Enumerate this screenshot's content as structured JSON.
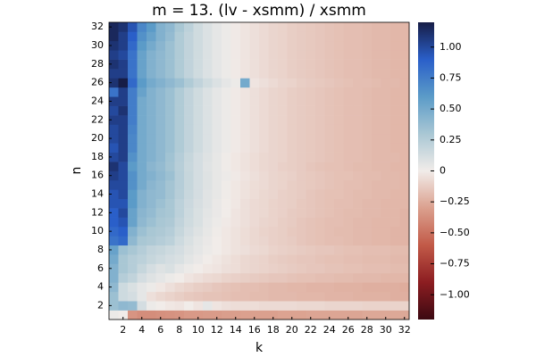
{
  "chart_data": {
    "type": "heatmap",
    "title": "m = 13. (lv - xsmm) / xsmm",
    "x_label": "k",
    "y_label": "n",
    "x": [
      1,
      2,
      3,
      4,
      5,
      6,
      7,
      8,
      9,
      10,
      11,
      12,
      13,
      14,
      15,
      16,
      17,
      18,
      19,
      20,
      21,
      22,
      23,
      24,
      25,
      26,
      27,
      28,
      29,
      30,
      31,
      32
    ],
    "y": [
      1,
      2,
      3,
      4,
      5,
      6,
      7,
      8,
      9,
      10,
      11,
      12,
      13,
      14,
      15,
      16,
      17,
      18,
      19,
      20,
      21,
      22,
      23,
      24,
      25,
      26,
      27,
      28,
      29,
      30,
      31,
      32
    ],
    "xlim": [
      0.5,
      32.5
    ],
    "ylim": [
      0.5,
      32.5
    ],
    "xticks": [
      2,
      4,
      6,
      8,
      10,
      12,
      14,
      16,
      18,
      20,
      22,
      24,
      26,
      28,
      30,
      32
    ],
    "yticks": [
      2,
      4,
      6,
      8,
      10,
      12,
      14,
      16,
      18,
      20,
      22,
      24,
      26,
      28,
      30,
      32
    ],
    "clim": [
      -1.2,
      1.2
    ],
    "colorbar_ticks": [
      {
        "value": -1,
        "label": "−1.00"
      },
      {
        "value": -0.75,
        "label": "−0.75"
      },
      {
        "value": -0.5,
        "label": "−0.50"
      },
      {
        "value": -0.25,
        "label": "−0.25"
      },
      0,
      {
        "value": 0.25,
        "label": "0.25"
      },
      {
        "value": 0.5,
        "label": "0.50"
      },
      {
        "value": 0.75,
        "label": "0.75"
      },
      {
        "value": 1,
        "label": "1.00"
      }
    ],
    "colormap": [
      "#3c0912",
      "#8c1d21",
      "#c25a48",
      "#dba08e",
      "#f1ece9",
      "#a9c7d4",
      "#5b9bc8",
      "#2a5fc9",
      "#171d46"
    ],
    "z": [
      [
        0.02,
        0.0,
        -0.35,
        -0.38,
        -0.38,
        -0.37,
        -0.36,
        -0.35,
        -0.33,
        -0.33,
        -0.32,
        -0.32,
        -0.31,
        -0.31,
        -0.3,
        -0.3,
        -0.3,
        -0.3,
        -0.29,
        -0.29,
        -0.29,
        -0.28,
        -0.28,
        -0.28,
        -0.28,
        -0.28,
        -0.28,
        -0.27,
        -0.27,
        -0.27,
        -0.27,
        -0.27
      ],
      [
        0.35,
        0.4,
        0.38,
        0.12,
        0.02,
        0.0,
        -0.02,
        -0.03,
        0.0,
        -0.03,
        0.05,
        -0.03,
        -0.05,
        -0.06,
        -0.06,
        -0.06,
        -0.07,
        -0.07,
        -0.07,
        -0.07,
        -0.08,
        -0.08,
        -0.08,
        -0.09,
        -0.09,
        -0.09,
        -0.09,
        -0.1,
        -0.1,
        -0.1,
        -0.1,
        -0.1
      ],
      [
        0.35,
        0.15,
        0.12,
        0.05,
        -0.05,
        -0.08,
        -0.1,
        -0.12,
        -0.14,
        -0.15,
        -0.16,
        -0.16,
        -0.17,
        -0.18,
        -0.18,
        -0.19,
        -0.19,
        -0.2,
        -0.2,
        -0.2,
        -0.21,
        -0.21,
        -0.21,
        -0.22,
        -0.22,
        -0.22,
        -0.23,
        -0.23,
        -0.23,
        -0.23,
        -0.24,
        -0.24
      ],
      [
        0.4,
        0.15,
        0.1,
        0.05,
        0.02,
        -0.02,
        -0.05,
        -0.08,
        -0.1,
        -0.12,
        -0.13,
        -0.15,
        -0.16,
        -0.17,
        -0.18,
        -0.18,
        -0.19,
        -0.2,
        -0.2,
        -0.21,
        -0.21,
        -0.22,
        -0.22,
        -0.22,
        -0.23,
        -0.23,
        -0.23,
        -0.24,
        -0.24,
        -0.24,
        -0.24,
        -0.25
      ],
      [
        0.45,
        0.25,
        0.2,
        0.12,
        0.08,
        0.05,
        0.02,
        0.0,
        -0.03,
        -0.05,
        -0.07,
        -0.08,
        -0.1,
        -0.11,
        -0.12,
        -0.13,
        -0.14,
        -0.15,
        -0.15,
        -0.16,
        -0.17,
        -0.17,
        -0.18,
        -0.18,
        -0.19,
        -0.19,
        -0.2,
        -0.2,
        -0.2,
        -0.21,
        -0.21,
        -0.21
      ],
      [
        0.45,
        0.3,
        0.25,
        0.18,
        0.12,
        0.08,
        0.1,
        0.05,
        0.02,
        0.0,
        -0.02,
        -0.03,
        -0.05,
        -0.06,
        -0.08,
        -0.09,
        -0.1,
        -0.11,
        -0.12,
        -0.13,
        -0.14,
        -0.15,
        -0.15,
        -0.16,
        -0.16,
        -0.17,
        -0.17,
        -0.18,
        -0.18,
        -0.18,
        -0.19,
        -0.19
      ],
      [
        0.5,
        0.3,
        0.25,
        0.22,
        0.18,
        0.15,
        0.12,
        0.1,
        0.06,
        0.03,
        0.0,
        -0.02,
        -0.04,
        -0.06,
        -0.08,
        -0.09,
        -0.1,
        -0.12,
        -0.13,
        -0.14,
        -0.15,
        -0.15,
        -0.16,
        -0.17,
        -0.17,
        -0.18,
        -0.18,
        -0.19,
        -0.19,
        -0.19,
        -0.2,
        -0.2
      ],
      [
        0.55,
        0.35,
        0.3,
        0.25,
        0.2,
        0.18,
        0.15,
        0.12,
        0.08,
        0.05,
        0.02,
        0.0,
        -0.02,
        -0.04,
        -0.05,
        -0.07,
        -0.08,
        -0.1,
        -0.11,
        -0.12,
        -0.13,
        -0.14,
        -0.15,
        -0.15,
        -0.16,
        -0.17,
        -0.17,
        -0.18,
        -0.18,
        -0.18,
        -0.19,
        -0.19
      ],
      [
        0.8,
        0.85,
        0.4,
        0.3,
        0.28,
        0.25,
        0.22,
        0.15,
        0.1,
        0.06,
        0.03,
        0.0,
        -0.02,
        -0.04,
        -0.06,
        -0.08,
        -0.09,
        -0.11,
        -0.12,
        -0.13,
        -0.15,
        -0.16,
        -0.17,
        -0.18,
        -0.18,
        -0.19,
        -0.2,
        -0.2,
        -0.21,
        -0.21,
        -0.22,
        -0.22
      ],
      [
        0.85,
        0.9,
        0.45,
        0.35,
        0.3,
        0.28,
        0.25,
        0.18,
        0.12,
        0.08,
        0.04,
        0.01,
        -0.02,
        -0.04,
        -0.06,
        -0.08,
        -0.1,
        -0.11,
        -0.12,
        -0.14,
        -0.15,
        -0.16,
        -0.17,
        -0.18,
        -0.19,
        -0.19,
        -0.2,
        -0.2,
        -0.21,
        -0.21,
        -0.22,
        -0.22
      ],
      [
        0.9,
        0.95,
        0.55,
        0.4,
        0.35,
        0.3,
        0.28,
        0.2,
        0.14,
        0.1,
        0.05,
        0.02,
        -0.01,
        -0.03,
        -0.05,
        -0.07,
        -0.09,
        -0.1,
        -0.12,
        -0.13,
        -0.15,
        -0.16,
        -0.17,
        -0.18,
        -0.18,
        -0.19,
        -0.2,
        -0.2,
        -0.21,
        -0.21,
        -0.21,
        -0.22
      ],
      [
        0.9,
        1.0,
        0.55,
        0.42,
        0.38,
        0.32,
        0.3,
        0.22,
        0.15,
        0.1,
        0.06,
        0.03,
        0.0,
        -0.03,
        -0.05,
        -0.07,
        -0.08,
        -0.1,
        -0.11,
        -0.13,
        -0.14,
        -0.15,
        -0.16,
        -0.17,
        -0.18,
        -0.19,
        -0.19,
        -0.2,
        -0.2,
        -0.21,
        -0.21,
        -0.22
      ],
      [
        0.95,
        0.95,
        0.6,
        0.45,
        0.4,
        0.35,
        0.3,
        0.22,
        0.16,
        0.11,
        0.07,
        0.03,
        0.0,
        -0.02,
        -0.05,
        -0.07,
        -0.08,
        -0.1,
        -0.11,
        -0.12,
        -0.14,
        -0.15,
        -0.16,
        -0.17,
        -0.18,
        -0.18,
        -0.19,
        -0.2,
        -0.2,
        -0.21,
        -0.21,
        -0.21
      ],
      [
        0.95,
        1.0,
        0.6,
        0.45,
        0.4,
        0.38,
        0.32,
        0.24,
        0.17,
        0.12,
        0.07,
        0.04,
        0.01,
        -0.02,
        -0.04,
        -0.06,
        -0.08,
        -0.09,
        -0.11,
        -0.12,
        -0.13,
        -0.15,
        -0.16,
        -0.17,
        -0.17,
        -0.18,
        -0.19,
        -0.19,
        -0.2,
        -0.2,
        -0.21,
        -0.21
      ],
      [
        1.0,
        1.0,
        0.65,
        0.5,
        0.42,
        0.38,
        0.32,
        0.25,
        0.18,
        0.12,
        0.08,
        0.04,
        0.01,
        -0.02,
        -0.04,
        -0.06,
        -0.07,
        -0.09,
        -0.1,
        -0.12,
        -0.13,
        -0.14,
        -0.15,
        -0.16,
        -0.17,
        -0.18,
        -0.18,
        -0.19,
        -0.2,
        -0.2,
        -0.2,
        -0.21
      ],
      [
        1.05,
        1.0,
        0.65,
        0.5,
        0.45,
        0.4,
        0.35,
        0.25,
        0.18,
        0.12,
        0.08,
        0.04,
        0.02,
        -0.01,
        -0.03,
        -0.05,
        -0.07,
        -0.09,
        -0.1,
        -0.11,
        -0.13,
        -0.14,
        -0.15,
        -0.16,
        -0.17,
        -0.17,
        -0.18,
        -0.19,
        -0.19,
        -0.2,
        -0.2,
        -0.21
      ],
      [
        1.1,
        1.0,
        0.6,
        0.5,
        0.42,
        0.38,
        0.32,
        0.24,
        0.17,
        0.12,
        0.07,
        0.04,
        0.01,
        -0.02,
        -0.04,
        -0.06,
        -0.08,
        -0.09,
        -0.11,
        -0.12,
        -0.13,
        -0.15,
        -0.16,
        -0.17,
        -0.17,
        -0.18,
        -0.19,
        -0.19,
        -0.2,
        -0.2,
        -0.21,
        -0.21
      ],
      [
        1.0,
        1.05,
        0.65,
        0.5,
        0.45,
        0.4,
        0.33,
        0.25,
        0.18,
        0.12,
        0.08,
        0.04,
        0.01,
        -0.02,
        -0.04,
        -0.06,
        -0.08,
        -0.09,
        -0.1,
        -0.12,
        -0.13,
        -0.14,
        -0.15,
        -0.16,
        -0.17,
        -0.18,
        -0.18,
        -0.19,
        -0.2,
        -0.2,
        -0.2,
        -0.21
      ],
      [
        0.95,
        1.05,
        0.7,
        0.5,
        0.45,
        0.4,
        0.35,
        0.27,
        0.2,
        0.14,
        0.09,
        0.05,
        0.02,
        -0.01,
        -0.03,
        -0.05,
        -0.07,
        -0.09,
        -0.1,
        -0.12,
        -0.13,
        -0.14,
        -0.15,
        -0.16,
        -0.17,
        -0.18,
        -0.18,
        -0.19,
        -0.2,
        -0.2,
        -0.21,
        -0.21
      ],
      [
        1.0,
        1.05,
        0.7,
        0.5,
        0.45,
        0.4,
        0.35,
        0.27,
        0.2,
        0.14,
        0.09,
        0.05,
        0.02,
        -0.01,
        -0.03,
        -0.05,
        -0.07,
        -0.09,
        -0.1,
        -0.12,
        -0.13,
        -0.14,
        -0.15,
        -0.16,
        -0.17,
        -0.18,
        -0.18,
        -0.19,
        -0.2,
        -0.2,
        -0.21,
        -0.21
      ],
      [
        1.0,
        1.05,
        0.72,
        0.5,
        0.45,
        0.4,
        0.35,
        0.27,
        0.2,
        0.14,
        0.09,
        0.05,
        0.02,
        -0.01,
        -0.03,
        -0.05,
        -0.07,
        -0.09,
        -0.1,
        -0.12,
        -0.13,
        -0.14,
        -0.15,
        -0.16,
        -0.17,
        -0.18,
        -0.18,
        -0.19,
        -0.2,
        -0.2,
        -0.21,
        -0.21
      ],
      [
        1.05,
        1.05,
        0.75,
        0.5,
        0.45,
        0.4,
        0.35,
        0.27,
        0.2,
        0.14,
        0.09,
        0.05,
        0.02,
        -0.01,
        -0.03,
        -0.05,
        -0.07,
        -0.09,
        -0.1,
        -0.12,
        -0.13,
        -0.14,
        -0.15,
        -0.16,
        -0.17,
        -0.18,
        -0.18,
        -0.19,
        -0.2,
        -0.2,
        -0.21,
        -0.21
      ],
      [
        1.0,
        1.1,
        0.75,
        0.5,
        0.45,
        0.4,
        0.35,
        0.27,
        0.2,
        0.14,
        0.09,
        0.05,
        0.02,
        -0.01,
        -0.03,
        -0.05,
        -0.07,
        -0.09,
        -0.1,
        -0.12,
        -0.13,
        -0.14,
        -0.15,
        -0.16,
        -0.17,
        -0.18,
        -0.18,
        -0.19,
        -0.2,
        -0.2,
        -0.21,
        -0.21
      ],
      [
        1.05,
        1.05,
        0.75,
        0.5,
        0.45,
        0.4,
        0.35,
        0.27,
        0.2,
        0.14,
        0.09,
        0.05,
        0.02,
        -0.01,
        -0.03,
        -0.05,
        -0.07,
        -0.09,
        -0.1,
        -0.12,
        -0.13,
        -0.14,
        -0.15,
        -0.16,
        -0.17,
        -0.18,
        -0.18,
        -0.19,
        -0.2,
        -0.2,
        -0.21,
        -0.21
      ],
      [
        0.8,
        1.05,
        0.75,
        0.55,
        0.45,
        0.4,
        0.35,
        0.27,
        0.2,
        0.14,
        0.09,
        0.05,
        0.02,
        -0.01,
        -0.03,
        -0.05,
        -0.07,
        -0.09,
        -0.1,
        -0.12,
        -0.13,
        -0.14,
        -0.15,
        -0.16,
        -0.17,
        -0.18,
        -0.18,
        -0.19,
        -0.2,
        -0.2,
        -0.21,
        -0.21
      ],
      [
        1.1,
        1.2,
        0.85,
        0.6,
        0.5,
        0.45,
        0.4,
        0.35,
        0.27,
        0.2,
        0.14,
        0.09,
        0.05,
        0.02,
        0.5,
        -0.03,
        -0.05,
        -0.07,
        -0.09,
        -0.1,
        -0.12,
        -0.13,
        -0.14,
        -0.15,
        -0.16,
        -0.17,
        -0.18,
        -0.18,
        -0.19,
        -0.2,
        -0.2,
        -0.21
      ],
      [
        1.05,
        1.05,
        0.8,
        0.55,
        0.45,
        0.4,
        0.35,
        0.27,
        0.2,
        0.14,
        0.09,
        0.05,
        0.02,
        -0.01,
        -0.03,
        -0.05,
        -0.07,
        -0.09,
        -0.1,
        -0.12,
        -0.13,
        -0.14,
        -0.15,
        -0.16,
        -0.17,
        -0.18,
        -0.18,
        -0.19,
        -0.2,
        -0.2,
        -0.21,
        -0.21
      ],
      [
        1.1,
        1.05,
        0.8,
        0.55,
        0.45,
        0.4,
        0.35,
        0.27,
        0.2,
        0.14,
        0.09,
        0.05,
        0.02,
        -0.01,
        -0.03,
        -0.05,
        -0.07,
        -0.09,
        -0.1,
        -0.12,
        -0.13,
        -0.14,
        -0.15,
        -0.16,
        -0.17,
        -0.18,
        -0.18,
        -0.19,
        -0.2,
        -0.2,
        -0.21,
        -0.21
      ],
      [
        1.05,
        1.0,
        0.8,
        0.55,
        0.45,
        0.4,
        0.35,
        0.27,
        0.2,
        0.14,
        0.09,
        0.05,
        0.02,
        -0.01,
        -0.03,
        -0.05,
        -0.07,
        -0.09,
        -0.1,
        -0.12,
        -0.13,
        -0.14,
        -0.15,
        -0.16,
        -0.17,
        -0.18,
        -0.18,
        -0.19,
        -0.2,
        -0.2,
        -0.21,
        -0.21
      ],
      [
        1.1,
        1.05,
        0.85,
        0.6,
        0.5,
        0.42,
        0.35,
        0.27,
        0.2,
        0.14,
        0.09,
        0.05,
        0.02,
        -0.01,
        -0.03,
        -0.05,
        -0.07,
        -0.09,
        -0.1,
        -0.12,
        -0.13,
        -0.14,
        -0.15,
        -0.16,
        -0.17,
        -0.18,
        -0.18,
        -0.19,
        -0.2,
        -0.2,
        -0.21,
        -0.21
      ],
      [
        1.15,
        1.05,
        0.9,
        0.65,
        0.55,
        0.45,
        0.38,
        0.27,
        0.2,
        0.14,
        0.09,
        0.05,
        0.02,
        -0.01,
        -0.03,
        -0.05,
        -0.07,
        -0.09,
        -0.1,
        -0.12,
        -0.13,
        -0.14,
        -0.15,
        -0.16,
        -0.17,
        -0.18,
        -0.18,
        -0.19,
        -0.2,
        -0.2,
        -0.21,
        -0.21
      ],
      [
        1.15,
        1.1,
        0.95,
        0.7,
        0.6,
        0.45,
        0.4,
        0.3,
        0.22,
        0.14,
        0.09,
        0.05,
        0.02,
        -0.01,
        -0.03,
        -0.05,
        -0.07,
        -0.09,
        -0.1,
        -0.12,
        -0.13,
        -0.14,
        -0.15,
        -0.16,
        -0.17,
        -0.18,
        -0.18,
        -0.19,
        -0.2,
        -0.2,
        -0.21,
        -0.21
      ]
    ]
  }
}
